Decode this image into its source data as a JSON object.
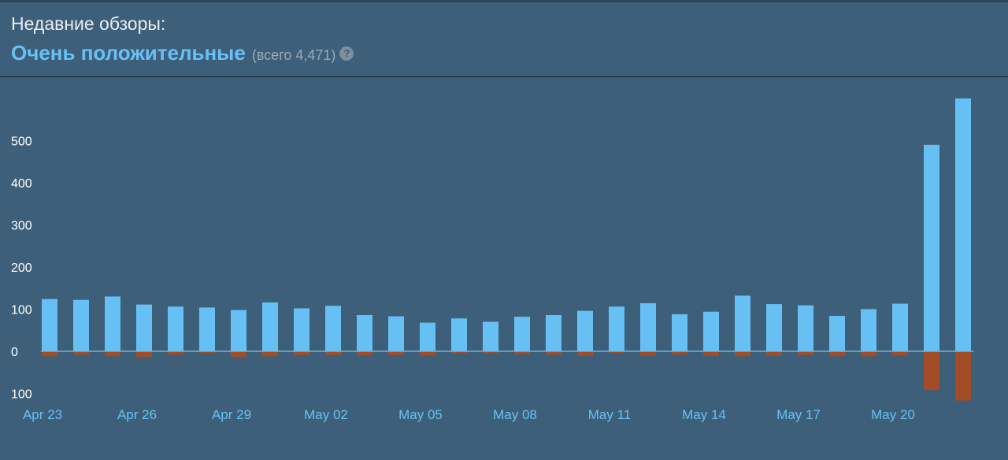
{
  "header": {
    "label": "Недавние обзоры:",
    "rating": "Очень положительные",
    "count": "(всего 4,471)",
    "help_icon": "question-mark-icon"
  },
  "colors": {
    "background": "#3e5f79",
    "positive": "#66c0f4",
    "negative": "#a34c25",
    "rating_text": "#67c1f5",
    "axis_line": "#5d9fc7"
  },
  "chart_data": {
    "type": "bar",
    "x": [
      "Apr 23",
      "Apr 24",
      "Apr 25",
      "Apr 26",
      "Apr 27",
      "Apr 28",
      "Apr 29",
      "Apr 30",
      "May 01",
      "May 02",
      "May 03",
      "May 04",
      "May 05",
      "May 06",
      "May 07",
      "May 08",
      "May 09",
      "May 10",
      "May 11",
      "May 12",
      "May 13",
      "May 14",
      "May 15",
      "May 16",
      "May 17",
      "May 18",
      "May 19",
      "May 20",
      "May 21",
      "May 22"
    ],
    "series": [
      {
        "values": [
          124,
          122,
          130,
          111,
          106,
          104,
          98,
          116,
          102,
          108,
          86,
          83,
          68,
          78,
          70,
          82,
          86,
          96,
          106,
          114,
          88,
          94,
          132,
          112,
          109,
          84,
          100,
          113,
          490,
          600
        ]
      },
      {
        "values": [
          -10,
          -6,
          -10,
          -12,
          -6,
          -3,
          -12,
          -10,
          -7,
          -7,
          -8,
          -7,
          -8,
          -3,
          -3,
          -5,
          -6,
          -9,
          -3,
          -9,
          -6,
          -9,
          -10,
          -9,
          -7,
          -10,
          -10,
          -8,
          -90,
          -115
        ]
      }
    ],
    "x_tick_labels": [
      "Apr 23",
      "Apr 26",
      "Apr 29",
      "May 02",
      "May 05",
      "May 08",
      "May 11",
      "May 14",
      "May 17",
      "May 20"
    ],
    "y_ticks": [
      500,
      400,
      300,
      200,
      100,
      0,
      -100
    ],
    "y_tick_labels": [
      "500",
      "400",
      "300",
      "200",
      "100",
      "0",
      "100"
    ],
    "ylim": [
      -120,
      620
    ],
    "grid": false,
    "legend": "none"
  }
}
